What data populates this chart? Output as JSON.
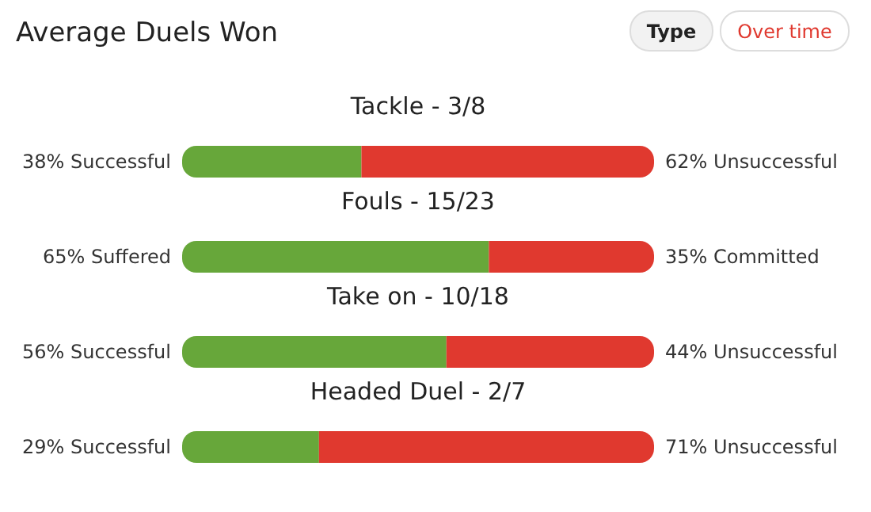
{
  "chart_data": {
    "type": "bar",
    "orientation": "horizontal",
    "stacked": true,
    "title": "Average Duels Won",
    "annotations": [
      "Type",
      "Over time"
    ],
    "categories": [
      "Tackle - 3/8",
      "Fouls - 15/23",
      "Take on - 10/18",
      "Headed Duel - 2/7"
    ],
    "xlim": [
      0,
      100
    ],
    "series": [
      {
        "color": "#67a73a",
        "values": [
          38,
          65,
          56,
          29
        ],
        "value_labels": [
          "38% Successful",
          "65% Suffered",
          "56% Successful",
          "29% Successful"
        ]
      },
      {
        "color": "#e0392f",
        "values": [
          62,
          35,
          44,
          71
        ],
        "value_labels": [
          "62% Unsuccessful",
          "35% Committed",
          "44% Unsuccessful",
          "71% Unsuccessful"
        ]
      }
    ]
  }
}
